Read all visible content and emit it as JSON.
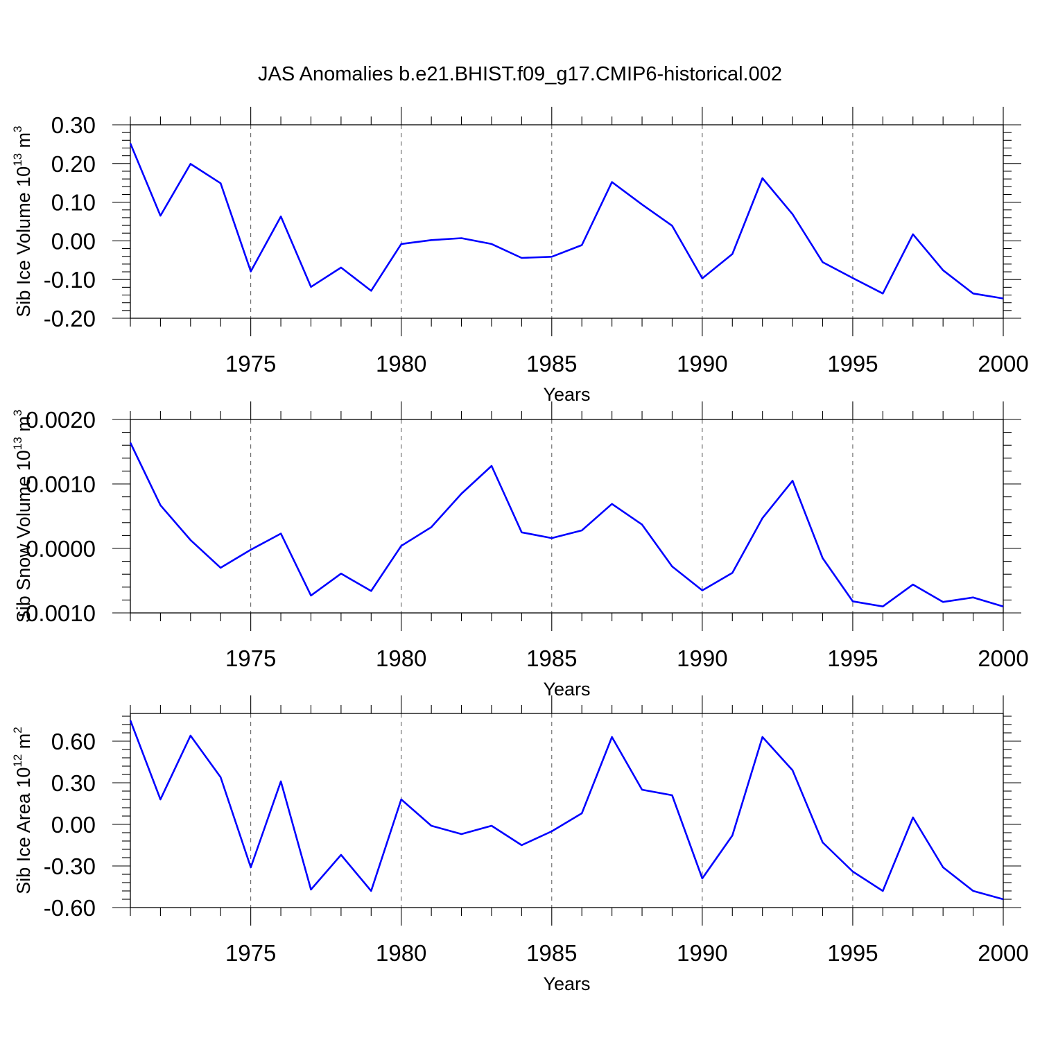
{
  "figure": {
    "title": "JAS Anomalies b.e21.BHIST.f09_g17.CMIP6-historical.002"
  },
  "colors": {
    "line": "#0000ff",
    "frame": "#000000",
    "grid": "#555555"
  },
  "chart_data": [
    {
      "type": "line",
      "xlabel": "Years",
      "ylabel_parts": {
        "pre": "Sib Ice Volume 10",
        "sup1": "13",
        "mid": " m",
        "sup2": "3"
      },
      "xlim": [
        1971,
        2000
      ],
      "ylim": [
        -0.2,
        0.3
      ],
      "xticks": [
        1975,
        1980,
        1985,
        1990,
        1995,
        2000
      ],
      "xtick_labels": [
        "1975",
        "1980",
        "1985",
        "1990",
        "1995",
        "2000"
      ],
      "yticks": [
        0.3,
        0.2,
        0.1,
        0.0,
        -0.1,
        -0.2
      ],
      "ytick_labels": [
        "0.30",
        "0.20",
        "0.10",
        "0.00",
        "-0.10",
        "-0.20"
      ],
      "grid": "vertical dashed at major x ticks",
      "series": [
        {
          "x": [
            1971,
            1972,
            1973,
            1974,
            1975,
            1976,
            1977,
            1978,
            1979,
            1980,
            1981,
            1982,
            1983,
            1984,
            1985,
            1986,
            1987,
            1988,
            1989,
            1990,
            1991,
            1992,
            1993,
            1994,
            1995,
            1996,
            1997,
            1998,
            1999,
            2000
          ],
          "y": [
            0.252,
            0.065,
            0.199,
            0.149,
            -0.079,
            0.063,
            -0.119,
            -0.069,
            -0.129,
            -0.008,
            0.002,
            0.007,
            -0.008,
            -0.044,
            -0.041,
            -0.011,
            0.152,
            0.094,
            0.039,
            -0.097,
            -0.034,
            0.162,
            0.069,
            -0.055,
            -0.096,
            -0.136,
            0.017,
            -0.076,
            -0.136,
            -0.149
          ]
        }
      ]
    },
    {
      "type": "line",
      "xlabel": "Years",
      "ylabel_parts": {
        "pre": "Sib Snow Volume 10",
        "sup1": "13",
        "mid": " m",
        "sup2": "3"
      },
      "xlim": [
        1971,
        2000
      ],
      "ylim": [
        -0.001,
        0.002
      ],
      "xticks": [
        1975,
        1980,
        1985,
        1990,
        1995,
        2000
      ],
      "xtick_labels": [
        "1975",
        "1980",
        "1985",
        "1990",
        "1995",
        "2000"
      ],
      "yticks": [
        0.002,
        0.001,
        0.0,
        -0.001
      ],
      "ytick_labels": [
        "0.0020",
        "0.0010",
        "0.0000",
        "-0.0010"
      ],
      "grid": "vertical dashed at major x ticks",
      "series": [
        {
          "x": [
            1971,
            1972,
            1973,
            1974,
            1975,
            1976,
            1977,
            1978,
            1979,
            1980,
            1981,
            1982,
            1983,
            1984,
            1985,
            1986,
            1987,
            1988,
            1989,
            1990,
            1991,
            1992,
            1993,
            1994,
            1995,
            1996,
            1997,
            1998,
            1999,
            2000
          ],
          "y": [
            0.00164,
            0.00067,
            0.00013,
            -0.0003,
            -2e-05,
            0.00023,
            -0.00073,
            -0.00039,
            -0.00066,
            4e-05,
            0.00033,
            0.00085,
            0.00128,
            0.00025,
            0.00016,
            0.00028,
            0.00069,
            0.00037,
            -0.00028,
            -0.00065,
            -0.00038,
            0.00047,
            0.00105,
            -0.00015,
            -0.00082,
            -0.0009,
            -0.00056,
            -0.00083,
            -0.00076,
            -0.0009
          ]
        }
      ]
    },
    {
      "type": "line",
      "xlabel": "Years",
      "ylabel_parts": {
        "pre": "Sib Ice Area 10",
        "sup1": "12",
        "mid": " m",
        "sup2": "2"
      },
      "xlim": [
        1971,
        2000
      ],
      "ylim": [
        -0.6,
        0.8
      ],
      "xticks": [
        1975,
        1980,
        1985,
        1990,
        1995,
        2000
      ],
      "xtick_labels": [
        "1975",
        "1980",
        "1985",
        "1990",
        "1995",
        "2000"
      ],
      "yticks": [
        0.6,
        0.3,
        0.0,
        -0.3,
        -0.6
      ],
      "ytick_labels": [
        "0.60",
        "0.30",
        "0.00",
        "-0.30",
        "-0.60"
      ],
      "grid": "vertical dashed at major x ticks",
      "series": [
        {
          "x": [
            1971,
            1972,
            1973,
            1974,
            1975,
            1976,
            1977,
            1978,
            1979,
            1980,
            1981,
            1982,
            1983,
            1984,
            1985,
            1986,
            1987,
            1988,
            1989,
            1990,
            1991,
            1992,
            1993,
            1994,
            1995,
            1996,
            1997,
            1998,
            1999,
            2000
          ],
          "y": [
            0.75,
            0.18,
            0.64,
            0.34,
            -0.31,
            0.31,
            -0.47,
            -0.22,
            -0.48,
            0.18,
            -0.01,
            -0.07,
            -0.01,
            -0.15,
            -0.05,
            0.08,
            0.63,
            0.25,
            0.21,
            -0.39,
            -0.08,
            0.63,
            0.39,
            -0.13,
            -0.34,
            -0.48,
            0.05,
            -0.31,
            -0.48,
            -0.54
          ]
        }
      ]
    }
  ]
}
